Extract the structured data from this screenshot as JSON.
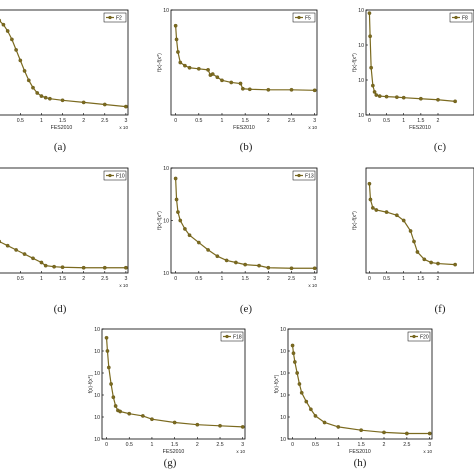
{
  "chart_data": [
    {
      "id": "a",
      "type": "line",
      "caption": "(a)",
      "xlabel": "FES2010",
      "ylabel": "",
      "x_exponent": "x 10",
      "legend": "F2",
      "legend_position": "top-right",
      "xlim": [
        -0.1,
        3.05
      ],
      "ylim": [
        0.0,
        1.0
      ],
      "xticks": [
        "0.5",
        "1",
        "1.5",
        "2",
        "2.5",
        "3"
      ],
      "yticks": [],
      "log_y": false,
      "series": [
        {
          "name": "F2",
          "x": [
            -0.1,
            0.0,
            0.1,
            0.2,
            0.3,
            0.4,
            0.5,
            0.6,
            0.7,
            0.8,
            0.9,
            1.0,
            1.1,
            1.2,
            1.5,
            2.0,
            2.5,
            3.0
          ],
          "y": [
            0.92,
            0.9,
            0.86,
            0.8,
            0.72,
            0.62,
            0.52,
            0.42,
            0.33,
            0.26,
            0.21,
            0.18,
            0.165,
            0.155,
            0.14,
            0.12,
            0.1,
            0.08
          ]
        }
      ]
    },
    {
      "id": "b",
      "type": "line",
      "caption": "(b)",
      "xlabel": "FES2010",
      "ylabel": "f(x)-f(x*)",
      "x_exponent": "x 10",
      "legend": "F5",
      "legend_position": "top-right",
      "xlim": [
        -0.1,
        3.05
      ],
      "ylim": [
        0.0,
        1.0
      ],
      "xticks": [
        "0",
        "0.5",
        "1",
        "1.5",
        "2",
        "2.5",
        "3"
      ],
      "yticks": [
        "10"
      ],
      "log_y": true,
      "series": [
        {
          "name": "F5",
          "x": [
            0.0,
            0.02,
            0.05,
            0.1,
            0.2,
            0.3,
            0.5,
            0.7,
            0.75,
            0.8,
            0.9,
            1.0,
            1.2,
            1.4,
            1.45,
            1.6,
            2.0,
            2.5,
            3.0
          ],
          "y": [
            0.85,
            0.72,
            0.6,
            0.5,
            0.47,
            0.45,
            0.44,
            0.43,
            0.38,
            0.39,
            0.36,
            0.33,
            0.31,
            0.3,
            0.25,
            0.245,
            0.24,
            0.24,
            0.235
          ]
        }
      ]
    },
    {
      "id": "c",
      "type": "line",
      "caption": "(c)",
      "xlabel": "FES2010",
      "ylabel": "f(x)-f(x*)",
      "x_exponent": "",
      "legend": "F8",
      "legend_position": "top-right",
      "xlim": [
        -0.1,
        3.05
      ],
      "ylim": [
        0.0,
        1.0
      ],
      "xticks": [
        "0",
        "0.5",
        "1",
        "1.5",
        "2"
      ],
      "yticks": [
        "10",
        "10",
        "10",
        "10"
      ],
      "log_y": true,
      "series": [
        {
          "name": "F8",
          "x": [
            0.0,
            0.02,
            0.05,
            0.1,
            0.15,
            0.2,
            0.3,
            0.5,
            0.8,
            1.0,
            1.5,
            2.0,
            2.5
          ],
          "y": [
            0.97,
            0.75,
            0.45,
            0.28,
            0.22,
            0.19,
            0.18,
            0.175,
            0.17,
            0.165,
            0.155,
            0.145,
            0.13
          ]
        }
      ]
    },
    {
      "id": "d",
      "type": "line",
      "caption": "(d)",
      "xlabel": "",
      "ylabel": "",
      "x_exponent": "x 10",
      "legend": "F10",
      "legend_position": "top-right",
      "xlim": [
        -0.1,
        3.05
      ],
      "ylim": [
        0.0,
        1.0
      ],
      "xticks": [
        "0.5",
        "1",
        "1.5",
        "2",
        "2.5",
        "3"
      ],
      "yticks": [],
      "log_y": false,
      "series": [
        {
          "name": "F10",
          "x": [
            -0.1,
            0.0,
            0.2,
            0.4,
            0.6,
            0.8,
            1.0,
            1.1,
            1.3,
            1.5,
            2.0,
            2.5,
            3.0
          ],
          "y": [
            0.32,
            0.3,
            0.26,
            0.22,
            0.18,
            0.14,
            0.1,
            0.07,
            0.06,
            0.055,
            0.05,
            0.05,
            0.05
          ]
        }
      ]
    },
    {
      "id": "e",
      "type": "line",
      "caption": "(e)",
      "xlabel": "",
      "ylabel": "f(x)-f(x*)",
      "x_exponent": "x 10",
      "legend": "F13",
      "legend_position": "top-right",
      "xlim": [
        -0.1,
        3.05
      ],
      "ylim": [
        0.0,
        1.0
      ],
      "xticks": [
        "0",
        "0.5",
        "1",
        "1.5",
        "2",
        "2.5",
        "3"
      ],
      "yticks": [
        "10",
        "10",
        "10"
      ],
      "log_y": true,
      "series": [
        {
          "name": "F13",
          "x": [
            0.0,
            0.02,
            0.05,
            0.1,
            0.2,
            0.3,
            0.5,
            0.7,
            0.9,
            1.1,
            1.3,
            1.5,
            1.8,
            2.0,
            2.5,
            3.0
          ],
          "y": [
            0.9,
            0.7,
            0.58,
            0.5,
            0.42,
            0.36,
            0.29,
            0.22,
            0.16,
            0.12,
            0.1,
            0.08,
            0.07,
            0.05,
            0.045,
            0.045
          ]
        }
      ]
    },
    {
      "id": "f",
      "type": "line",
      "caption": "(f)",
      "xlabel": "",
      "ylabel": "f(x)-f(x*)",
      "x_exponent": "",
      "legend": "",
      "legend_position": "top-right",
      "xlim": [
        -0.1,
        3.05
      ],
      "ylim": [
        0.0,
        1.0
      ],
      "xticks": [
        "0",
        "0.5",
        "1",
        "1.5",
        "2"
      ],
      "yticks": [],
      "log_y": true,
      "series": [
        {
          "name": "",
          "x": [
            0.0,
            0.03,
            0.1,
            0.2,
            0.5,
            0.8,
            1.0,
            1.2,
            1.3,
            1.4,
            1.6,
            1.8,
            2.0,
            2.5
          ],
          "y": [
            0.85,
            0.7,
            0.62,
            0.6,
            0.58,
            0.55,
            0.5,
            0.4,
            0.3,
            0.2,
            0.13,
            0.1,
            0.09,
            0.08
          ]
        }
      ]
    },
    {
      "id": "g",
      "type": "line",
      "caption": "(g)",
      "xlabel": "FES2010",
      "ylabel": "f(x)-f(x*)",
      "x_exponent": "x 10",
      "legend": "F18",
      "legend_position": "top-right",
      "xlim": [
        -0.1,
        3.05
      ],
      "ylim": [
        0.0,
        1.0
      ],
      "xticks": [
        "0",
        "0.5",
        "1",
        "1.5",
        "2",
        "2.5",
        "3"
      ],
      "yticks": [
        "10",
        "10",
        "10",
        "10",
        "10",
        "10"
      ],
      "log_y": true,
      "series": [
        {
          "name": "F18",
          "x": [
            0.0,
            0.02,
            0.05,
            0.1,
            0.15,
            0.2,
            0.25,
            0.3,
            0.5,
            0.8,
            1.0,
            1.5,
            2.0,
            2.5,
            3.0
          ],
          "y": [
            0.92,
            0.8,
            0.65,
            0.5,
            0.38,
            0.3,
            0.26,
            0.25,
            0.23,
            0.21,
            0.18,
            0.15,
            0.13,
            0.12,
            0.11
          ]
        }
      ]
    },
    {
      "id": "h",
      "type": "line",
      "caption": "(h)",
      "xlabel": "FES2010",
      "ylabel": "f(x)-f(x*)",
      "x_exponent": "x 10",
      "legend": "F20",
      "legend_position": "top-right",
      "xlim": [
        -0.1,
        3.05
      ],
      "ylim": [
        0.0,
        1.0
      ],
      "xticks": [
        "0",
        "0.5",
        "1",
        "1.5",
        "2",
        "2.5",
        "3"
      ],
      "yticks": [
        "10",
        "10",
        "10",
        "10",
        "10",
        "10"
      ],
      "log_y": true,
      "series": [
        {
          "name": "F20",
          "x": [
            0.0,
            0.02,
            0.05,
            0.1,
            0.15,
            0.2,
            0.3,
            0.4,
            0.5,
            0.7,
            1.0,
            1.5,
            2.0,
            2.5,
            3.0
          ],
          "y": [
            0.85,
            0.78,
            0.7,
            0.6,
            0.5,
            0.42,
            0.34,
            0.27,
            0.21,
            0.15,
            0.11,
            0.08,
            0.06,
            0.05,
            0.05
          ]
        }
      ]
    }
  ]
}
